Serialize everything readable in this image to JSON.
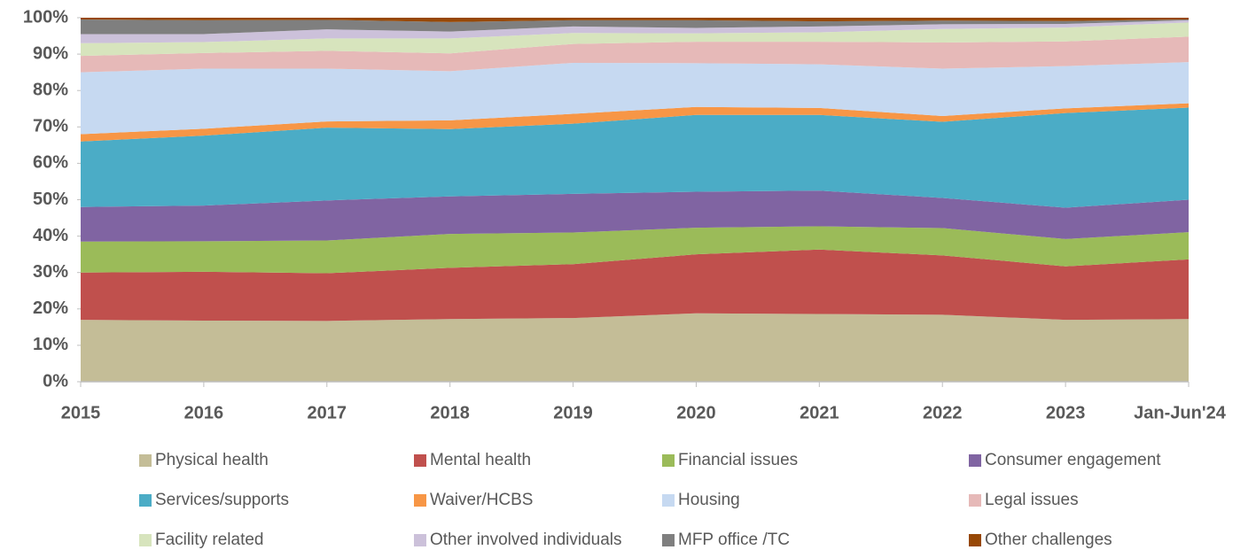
{
  "chart_data": {
    "type": "stacked_area",
    "categories": [
      "2015",
      "2016",
      "2017",
      "2018",
      "2019",
      "2020",
      "2021",
      "2022",
      "2023",
      "Jan-Jun'24"
    ],
    "ylim": [
      0,
      100
    ],
    "yticks": [
      {
        "value": 0,
        "label": "0%"
      },
      {
        "value": 10,
        "label": "10%"
      },
      {
        "value": 20,
        "label": "20%"
      },
      {
        "value": 30,
        "label": "30%"
      },
      {
        "value": 40,
        "label": "40%"
      },
      {
        "value": 50,
        "label": "50%"
      },
      {
        "value": 60,
        "label": "60%"
      },
      {
        "value": 70,
        "label": "70%"
      },
      {
        "value": 80,
        "label": "80%"
      },
      {
        "value": 90,
        "label": "90%"
      },
      {
        "value": 100,
        "label": "100%"
      }
    ],
    "legend": "bottom",
    "series": [
      {
        "name": "Physical health",
        "color": "#c4bd97",
        "values": [
          17,
          16.8,
          16.7,
          17.2,
          17.5,
          18.8,
          18.6,
          18.4,
          17.0,
          17.2
        ]
      },
      {
        "name": "Mental health",
        "color": "#c0504d",
        "values": [
          13,
          13.4,
          13.1,
          14.1,
          14.8,
          16.2,
          17.7,
          16.3,
          14.7,
          16.4
        ]
      },
      {
        "name": "Financial issues",
        "color": "#9bbb59",
        "values": [
          8.5,
          8.4,
          9.0,
          9.3,
          8.7,
          7.3,
          6.4,
          7.5,
          7.5,
          7.5
        ]
      },
      {
        "name": "Consumer engagement",
        "color": "#8064a2",
        "values": [
          9.5,
          9.8,
          11.0,
          10.3,
          10.6,
          9.9,
          9.8,
          8.3,
          8.6,
          8.9
        ]
      },
      {
        "name": "Services/supports",
        "color": "#4bacc6",
        "values": [
          18,
          19.2,
          20.0,
          18.5,
          19.3,
          21.1,
          20.8,
          20.9,
          26.0,
          25.3
        ]
      },
      {
        "name": "Waiver/HCBS",
        "color": "#f79646",
        "values": [
          2,
          1.9,
          1.7,
          2.4,
          2.7,
          2.2,
          1.9,
          1.6,
          1.3,
          1.2
        ]
      },
      {
        "name": "Housing",
        "color": "#c6d9f1",
        "values": [
          17,
          16.5,
          14.5,
          13.5,
          14.0,
          12.0,
          12.0,
          13.0,
          11.6,
          11.3
        ]
      },
      {
        "name": "Legal issues",
        "color": "#e6b9b8",
        "values": [
          4.5,
          4.3,
          4.9,
          4.9,
          5.2,
          5.9,
          6.2,
          7.2,
          6.8,
          7.0
        ]
      },
      {
        "name": "Facility related",
        "color": "#d7e4bd",
        "values": [
          3.5,
          3.0,
          3.4,
          4.1,
          3.0,
          2.3,
          2.6,
          3.7,
          3.8,
          3.9
        ]
      },
      {
        "name": "Other involved individuals",
        "color": "#ccc1da",
        "values": [
          2.5,
          2.2,
          2.5,
          1.9,
          1.8,
          1.5,
          1.6,
          1.3,
          1.0,
          0.6
        ]
      },
      {
        "name": "MFP office /TC",
        "color": "#7f7f7f",
        "values": [
          4.0,
          3.8,
          2.6,
          2.6,
          1.7,
          2.1,
          1.4,
          1.0,
          0.8,
          0.2
        ]
      },
      {
        "name": "Other challenges",
        "color": "#974806",
        "values": [
          0.5,
          0.7,
          0.6,
          1.2,
          0.7,
          0.7,
          1.0,
          0.8,
          0.9,
          0.5
        ]
      }
    ]
  }
}
